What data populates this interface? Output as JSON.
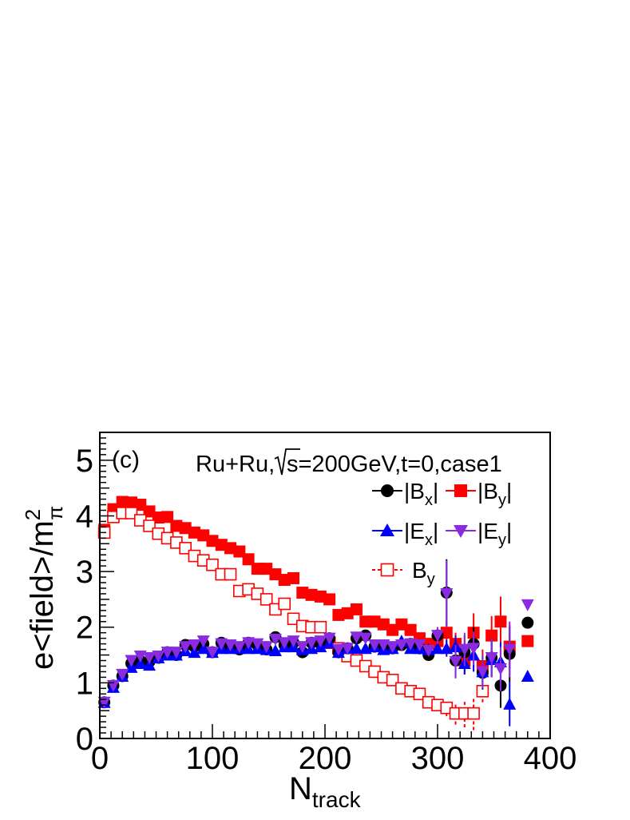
{
  "chart_data": {
    "type": "scatter",
    "panel_label": "(c)",
    "title": "Ru+Ru,√s=200GeV,t=0,case1",
    "title_parts": {
      "before_sqrt": "Ru+Ru,",
      "after_sqrt": "s=200GeV,t=0,case1"
    },
    "xlabel": "N",
    "xlabel_sub": "track",
    "ylabel": "e<field>/m",
    "ylabel_sub": "π",
    "ylabel_sup": "2",
    "xlim": [
      0,
      400
    ],
    "ylim": [
      0,
      5.5
    ],
    "x_ticks": [
      "0",
      "100",
      "200",
      "300",
      "400"
    ],
    "y_ticks": [
      "0",
      "1",
      "2",
      "3",
      "4",
      "5"
    ],
    "grid": false,
    "legend_position": "top-right",
    "legend": [
      {
        "base": "|B",
        "sub": "x",
        "end": "|"
      },
      {
        "base": "|B",
        "sub": "y",
        "end": "|"
      },
      {
        "base": "|E",
        "sub": "x",
        "end": "|"
      },
      {
        "base": "|E",
        "sub": "y",
        "end": "|"
      },
      {
        "base": "B",
        "sub": "y",
        "end": ""
      }
    ],
    "colors": {
      "Bx": "#000000",
      "By": "#ff0000",
      "Ex": "#0000ff",
      "Ey": "#8a2be2",
      "By_signed": "#ff0000"
    },
    "x": [
      4,
      12,
      20,
      28,
      36,
      44,
      52,
      60,
      68,
      76,
      84,
      92,
      100,
      108,
      116,
      124,
      132,
      140,
      148,
      156,
      164,
      172,
      180,
      188,
      196,
      204,
      212,
      220,
      228,
      236,
      244,
      252,
      260,
      268,
      276,
      284,
      292,
      300,
      308,
      316,
      324,
      332,
      340,
      348,
      356,
      364,
      380
    ],
    "series": [
      {
        "key": "By",
        "marker": "filled-square",
        "values": [
          3.75,
          4.12,
          4.25,
          4.24,
          4.2,
          4.08,
          3.97,
          3.98,
          3.82,
          3.78,
          3.7,
          3.65,
          3.55,
          3.48,
          3.42,
          3.36,
          3.22,
          3.05,
          3.05,
          2.95,
          2.85,
          2.88,
          2.62,
          2.58,
          2.55,
          2.5,
          2.22,
          2.25,
          2.32,
          2.1,
          2.1,
          2.05,
          1.95,
          2.05,
          1.95,
          1.8,
          1.7,
          1.75,
          1.9,
          1.7,
          1.4,
          1.9,
          1.3,
          1.85,
          2.1,
          1.65,
          1.75
        ],
        "errors": [
          0,
          0,
          0,
          0,
          0,
          0,
          0,
          0,
          0,
          0,
          0,
          0,
          0,
          0,
          0,
          0,
          0,
          0,
          0,
          0,
          0,
          0,
          0,
          0,
          0,
          0,
          0,
          0,
          0,
          0,
          0,
          0,
          0,
          0,
          0,
          0,
          0,
          0,
          0.2,
          0.2,
          0.25,
          0.35,
          0.3,
          0.35,
          0.45,
          0.4,
          0
        ]
      },
      {
        "key": "By_signed",
        "marker": "open-square",
        "values": [
          3.7,
          3.98,
          4.05,
          4.05,
          3.92,
          3.82,
          3.68,
          3.6,
          3.52,
          3.42,
          3.28,
          3.2,
          3.12,
          2.95,
          2.95,
          2.65,
          2.68,
          2.6,
          2.5,
          2.32,
          2.42,
          2.15,
          2.02,
          2.0,
          2.0,
          1.72,
          1.62,
          1.48,
          1.4,
          1.3,
          1.2,
          1.1,
          1.05,
          0.9,
          0.85,
          0.8,
          0.65,
          0.6,
          0.55,
          0.45,
          0.45,
          0.45,
          0.85
        ],
        "errors": [
          0,
          0,
          0,
          0,
          0,
          0,
          0,
          0,
          0,
          0,
          0,
          0,
          0,
          0,
          0,
          0,
          0,
          0,
          0,
          0,
          0,
          0,
          0,
          0,
          0,
          0,
          0,
          0,
          0,
          0,
          0,
          0,
          0,
          0,
          0,
          0,
          0,
          0,
          0.15,
          0.2,
          0.25,
          0.3,
          0.2
        ]
      },
      {
        "key": "Bx",
        "marker": "filled-circle",
        "values": [
          0.65,
          0.95,
          1.12,
          1.35,
          1.4,
          1.38,
          1.45,
          1.55,
          1.5,
          1.68,
          1.65,
          1.7,
          1.55,
          1.72,
          1.65,
          1.6,
          1.72,
          1.68,
          1.6,
          1.82,
          1.68,
          1.72,
          1.55,
          1.72,
          1.7,
          1.8,
          1.55,
          1.62,
          1.8,
          1.85,
          1.65,
          1.62,
          1.62,
          1.68,
          1.7,
          1.62,
          1.5,
          1.85,
          2.62,
          1.4,
          1.55,
          1.7,
          1.18,
          1.45,
          0.95,
          1.52,
          2.08
        ],
        "errors": [
          0,
          0,
          0,
          0,
          0,
          0,
          0,
          0,
          0,
          0,
          0,
          0,
          0,
          0,
          0,
          0,
          0,
          0,
          0,
          0,
          0,
          0,
          0,
          0,
          0,
          0,
          0,
          0,
          0,
          0,
          0,
          0,
          0,
          0,
          0,
          0,
          0,
          0.15,
          0.6,
          0.3,
          0.3,
          0.3,
          0.3,
          0.35,
          0.4,
          0.5,
          0
        ]
      },
      {
        "key": "Ex",
        "marker": "filled-triangle-up",
        "values": [
          0.65,
          0.92,
          1.12,
          1.28,
          1.35,
          1.32,
          1.45,
          1.5,
          1.5,
          1.58,
          1.55,
          1.62,
          1.55,
          1.62,
          1.62,
          1.62,
          1.62,
          1.62,
          1.6,
          1.58,
          1.65,
          1.65,
          1.6,
          1.62,
          1.65,
          1.72,
          1.55,
          1.62,
          1.62,
          1.62,
          1.65,
          1.6,
          1.62,
          1.75,
          1.62,
          1.62,
          1.6,
          1.62,
          1.62,
          1.65,
          1.35,
          1.5,
          1.2,
          1.42,
          1.38,
          0.62,
          1.12
        ],
        "errors": [
          0,
          0,
          0,
          0,
          0,
          0,
          0,
          0,
          0,
          0,
          0,
          0,
          0,
          0,
          0,
          0,
          0,
          0,
          0,
          0,
          0,
          0,
          0,
          0,
          0,
          0,
          0,
          0,
          0,
          0,
          0,
          0,
          0,
          0,
          0,
          0,
          0,
          0,
          0.15,
          0.2,
          0.2,
          0.3,
          0.2,
          0.3,
          0.35,
          0.4,
          0
        ]
      },
      {
        "key": "Ey",
        "marker": "filled-triangle-down",
        "values": [
          0.65,
          0.95,
          1.15,
          1.4,
          1.48,
          1.45,
          1.48,
          1.55,
          1.55,
          1.65,
          1.68,
          1.75,
          1.55,
          1.7,
          1.68,
          1.65,
          1.72,
          1.7,
          1.65,
          1.78,
          1.72,
          1.75,
          1.65,
          1.72,
          1.75,
          1.8,
          1.6,
          1.62,
          1.82,
          1.8,
          1.68,
          1.68,
          1.65,
          1.68,
          1.7,
          1.68,
          1.58,
          1.85,
          2.6,
          1.38,
          1.6,
          1.62,
          1.2,
          1.45,
          1.25,
          1.6,
          2.4
        ],
        "errors": [
          0,
          0,
          0,
          0,
          0,
          0,
          0,
          0,
          0,
          0,
          0,
          0,
          0,
          0,
          0,
          0,
          0,
          0,
          0,
          0,
          0,
          0,
          0,
          0,
          0,
          0,
          0,
          0,
          0,
          0,
          0,
          0,
          0,
          0,
          0,
          0,
          0,
          0.15,
          0.6,
          0.3,
          0.3,
          0.3,
          0.3,
          0.35,
          0.4,
          0.5,
          0
        ]
      }
    ]
  }
}
